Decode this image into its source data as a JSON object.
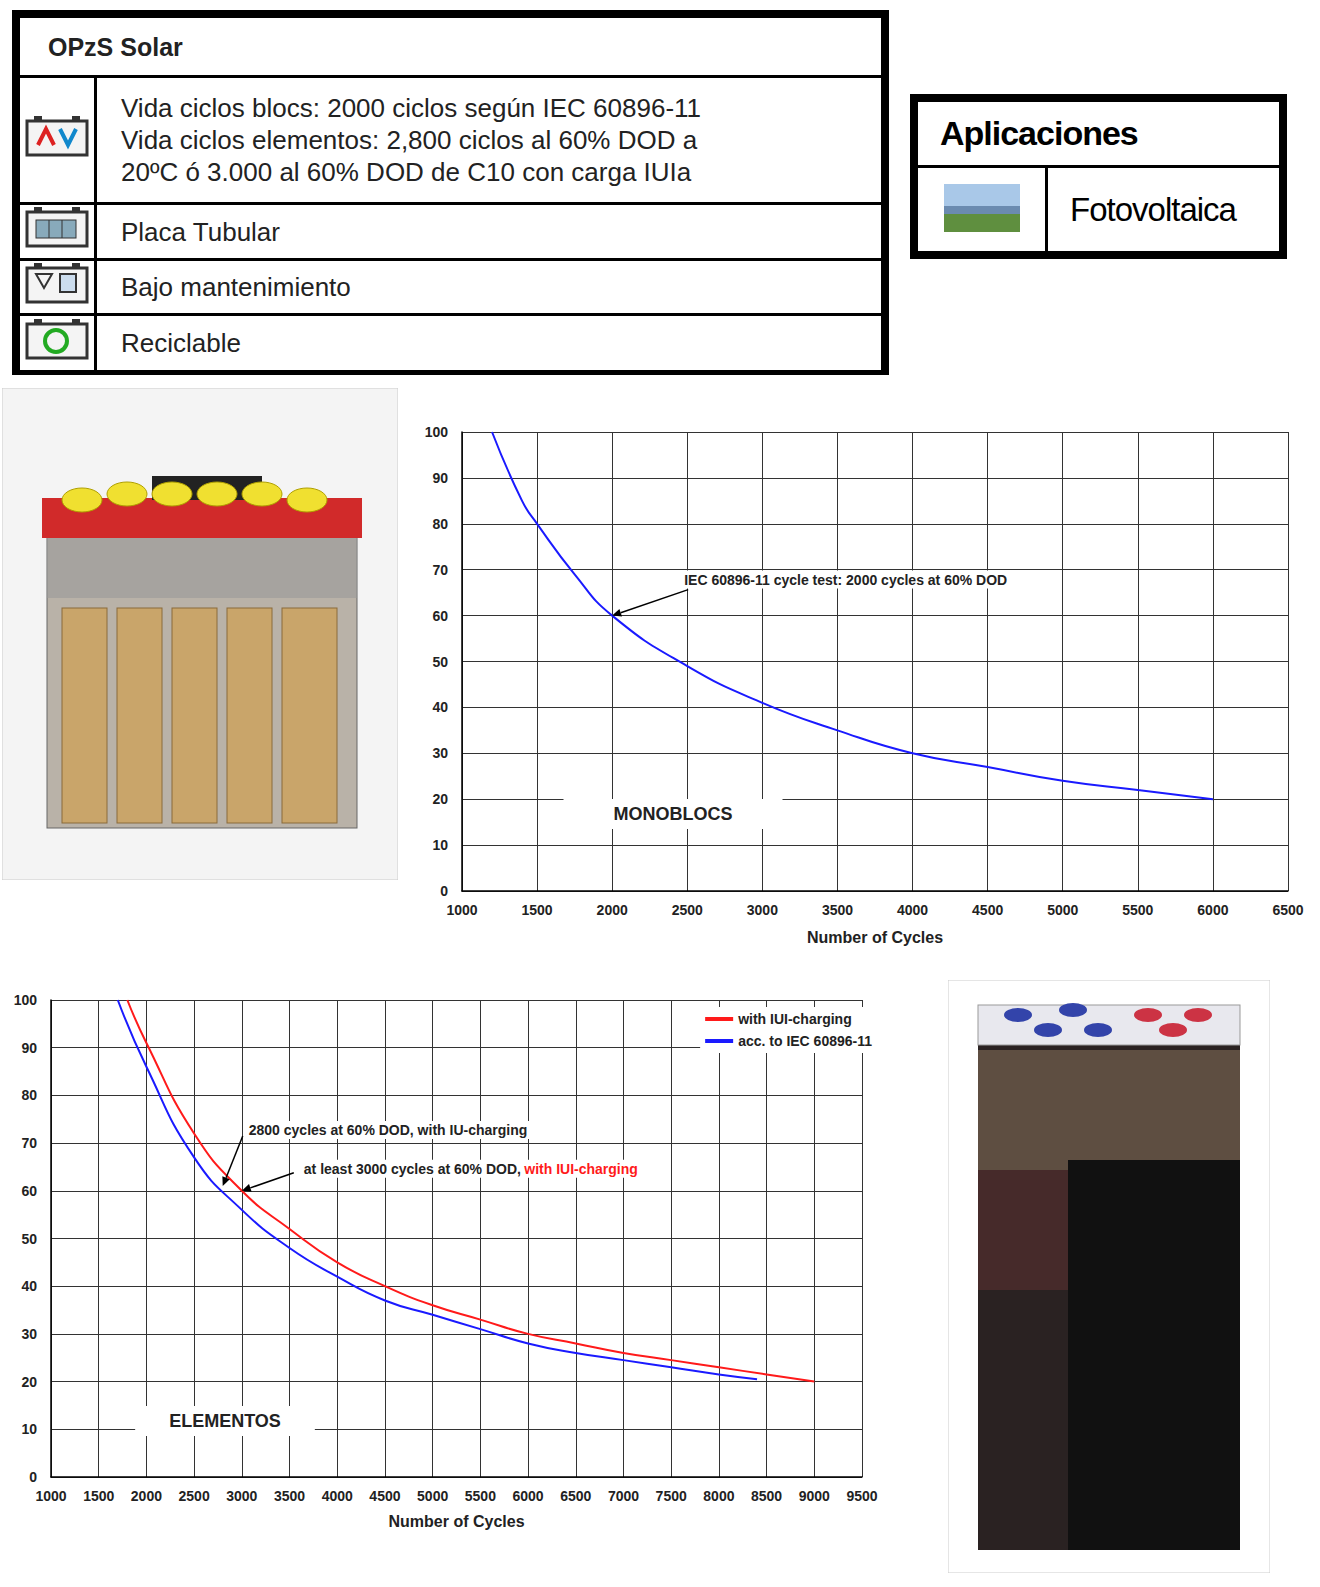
{
  "table": {
    "title": "OPzS Solar",
    "rows": [
      [
        "Vida ciclos blocs: 2000 ciclos según IEC 60896-11",
        "Vida ciclos elementos: 2,800 ciclos al 60% DOD a",
        "20ºC ó 3.000 al 60% DOD de C10 con carga IUIa"
      ],
      [
        "Placa Tubular"
      ],
      [
        "Bajo mantenimiento"
      ],
      [
        "Reciclable"
      ]
    ]
  },
  "applications": {
    "title": "Aplicaciones",
    "items": [
      "Fotovoltaica"
    ]
  },
  "chart_data": [
    {
      "type": "line",
      "x_label": "Number of Cycles",
      "x": [
        1200,
        1400,
        1500,
        1750,
        2000,
        2500,
        3000,
        3500,
        4000,
        4500,
        5000,
        5500,
        6000
      ],
      "values": [
        100,
        85,
        80,
        69,
        60,
        49,
        41,
        35,
        30,
        27,
        24,
        22,
        20
      ],
      "color": "#1a1aff",
      "xlim": [
        1000,
        6500
      ],
      "xticks": [
        1000,
        1500,
        2000,
        2500,
        3000,
        3500,
        4000,
        4500,
        5000,
        5500,
        6000,
        6500
      ],
      "ylim": [
        0,
        100
      ],
      "yticks": [
        0,
        10,
        20,
        30,
        40,
        50,
        60,
        70,
        80,
        90,
        100
      ],
      "grid": true,
      "annotations": [
        {
          "parts": [
            {
              "text": "IEC 60896-11 cycle test: 2000 cycles at 60% DOD"
            }
          ],
          "x": 2000,
          "y": 60
        },
        {
          "parts": [
            {
              "text": "MONOBLOCS"
            }
          ]
        }
      ]
    },
    {
      "type": "line",
      "x_label": "Number of Cycles",
      "series": [
        {
          "name": "with IUI-charging",
          "color": "#ff1a1a",
          "x": [
            1800,
            2000,
            2500,
            3000,
            3500,
            4000,
            4500,
            5000,
            5500,
            6000,
            6500,
            7000,
            7500,
            8000,
            8500,
            9000
          ],
          "values": [
            100,
            91,
            72,
            60,
            52,
            45,
            40,
            36,
            33,
            30,
            28,
            26,
            24.5,
            23,
            21.5,
            20
          ]
        },
        {
          "name": "acc. to IEC 60896-11",
          "color": "#1a1aff",
          "x": [
            1700,
            2000,
            2500,
            3000,
            3500,
            4000,
            4500,
            5000,
            5500,
            6000,
            6500,
            7000,
            7500,
            8000,
            8400
          ],
          "values": [
            100,
            86,
            67,
            56,
            48,
            42,
            37,
            34,
            31,
            28,
            26,
            24.5,
            23,
            21.5,
            20.5
          ]
        }
      ],
      "xlim": [
        1000,
        9500
      ],
      "xticks": [
        1000,
        1500,
        2000,
        2500,
        3000,
        3500,
        4000,
        4500,
        5000,
        5500,
        6000,
        6500,
        7000,
        7500,
        8000,
        8500,
        9000,
        9500
      ],
      "ylim": [
        0,
        100
      ],
      "yticks": [
        0,
        10,
        20,
        30,
        40,
        50,
        60,
        70,
        80,
        90,
        100
      ],
      "grid": true,
      "legend": "upper right",
      "annotations": [
        {
          "parts": [
            {
              "text": "2800 cycles at 60% DOD, with IU-charging"
            }
          ],
          "x": 2800,
          "y": 61
        },
        {
          "parts": [
            {
              "text": "at least 3000 cycles at 60% DOD,"
            },
            {
              "text": "with IUI-charging",
              "color": "#ff1a1a"
            }
          ],
          "x": 3000,
          "y": 60
        },
        {
          "parts": [
            {
              "text": "ELEMENTOS"
            }
          ]
        }
      ]
    }
  ]
}
